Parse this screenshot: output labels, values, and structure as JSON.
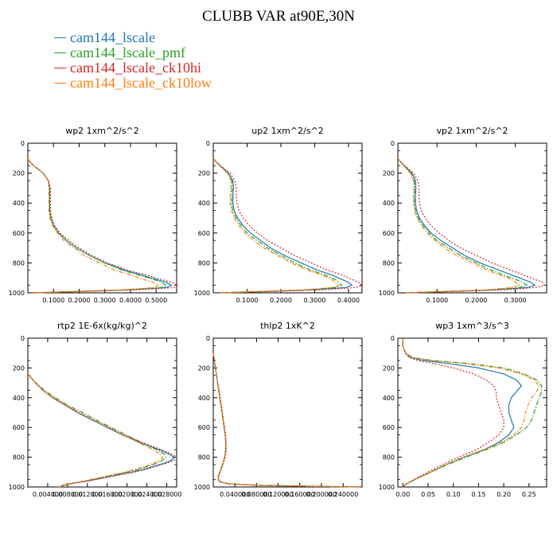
{
  "title": "CLUBB VAR at90E,30N",
  "legend": [
    {
      "label": "cam144_lscale",
      "color": "#1f77b4"
    },
    {
      "label": "cam144_lscale_pmf",
      "color": "#2ca02c"
    },
    {
      "label": "cam144_lscale_ck10hi",
      "color": "#d62728"
    },
    {
      "label": "cam144_lscale_ck10low",
      "color": "#ff7f0e"
    }
  ],
  "chart_data": [
    {
      "type": "line",
      "title": "wp2  1xm^2/s^2",
      "xlim": [
        0,
        0.58
      ],
      "ylim": [
        1000,
        0
      ],
      "xticks": [
        0.1,
        0.2,
        0.3,
        0.4,
        0.5
      ],
      "xtick_labels": [
        "0.1000",
        "0.2000",
        "0.3000",
        "0.4000",
        "0.5000"
      ],
      "yticks": [
        0,
        200,
        400,
        600,
        800,
        1000
      ],
      "ytick_labels": [
        "0",
        "200",
        "400",
        "600",
        "800",
        "1000"
      ],
      "y": [
        100,
        130,
        160,
        200,
        250,
        300,
        350,
        400,
        450,
        500,
        550,
        600,
        650,
        700,
        750,
        800,
        850,
        880,
        910,
        930,
        950,
        965,
        980,
        992,
        1000
      ],
      "series": [
        {
          "name": "cam144_lscale",
          "values": [
            0.0,
            0.01,
            0.03,
            0.06,
            0.08,
            0.085,
            0.085,
            0.085,
            0.085,
            0.09,
            0.1,
            0.12,
            0.15,
            0.19,
            0.24,
            0.3,
            0.38,
            0.44,
            0.5,
            0.54,
            0.56,
            0.54,
            0.4,
            0.18,
            0.02
          ]
        },
        {
          "name": "cam144_lscale_pmf",
          "values": [
            0.0,
            0.01,
            0.03,
            0.06,
            0.08,
            0.085,
            0.085,
            0.085,
            0.085,
            0.09,
            0.1,
            0.12,
            0.15,
            0.19,
            0.24,
            0.3,
            0.37,
            0.43,
            0.49,
            0.52,
            0.54,
            0.52,
            0.39,
            0.17,
            0.02
          ]
        },
        {
          "name": "cam144_lscale_ck10hi",
          "values": [
            0.0,
            0.01,
            0.03,
            0.06,
            0.08,
            0.088,
            0.088,
            0.088,
            0.088,
            0.093,
            0.104,
            0.125,
            0.16,
            0.2,
            0.25,
            0.31,
            0.39,
            0.46,
            0.52,
            0.56,
            0.585,
            0.57,
            0.43,
            0.19,
            0.02
          ]
        },
        {
          "name": "cam144_lscale_ck10low",
          "values": [
            0.0,
            0.01,
            0.03,
            0.06,
            0.08,
            0.082,
            0.082,
            0.082,
            0.082,
            0.086,
            0.096,
            0.115,
            0.14,
            0.18,
            0.22,
            0.28,
            0.34,
            0.4,
            0.45,
            0.49,
            0.51,
            0.49,
            0.37,
            0.16,
            0.02
          ]
        }
      ]
    },
    {
      "type": "line",
      "title": "up2  1xm^2/s^2",
      "xlim": [
        0,
        0.44
      ],
      "ylim": [
        1000,
        0
      ],
      "xticks": [
        0.1,
        0.2,
        0.3,
        0.4
      ],
      "xtick_labels": [
        "0.1000",
        "0.2000",
        "0.3000",
        "0.4000"
      ],
      "yticks": [
        0,
        200,
        400,
        600,
        800,
        1000
      ],
      "ytick_labels": [
        "0",
        "200",
        "400",
        "600",
        "800",
        "1000"
      ],
      "y": [
        100,
        130,
        160,
        200,
        250,
        300,
        350,
        400,
        450,
        500,
        550,
        600,
        650,
        700,
        750,
        800,
        850,
        880,
        910,
        930,
        950,
        965,
        980,
        992,
        1000
      ],
      "series": [
        {
          "name": "cam144_lscale",
          "values": [
            0.0,
            0.01,
            0.025,
            0.045,
            0.058,
            0.06,
            0.058,
            0.058,
            0.062,
            0.072,
            0.088,
            0.11,
            0.14,
            0.17,
            0.21,
            0.26,
            0.31,
            0.35,
            0.38,
            0.4,
            0.41,
            0.39,
            0.3,
            0.14,
            0.02
          ]
        },
        {
          "name": "cam144_lscale_pmf",
          "values": [
            0.0,
            0.01,
            0.024,
            0.043,
            0.055,
            0.056,
            0.054,
            0.054,
            0.058,
            0.067,
            0.082,
            0.1,
            0.13,
            0.16,
            0.2,
            0.24,
            0.29,
            0.33,
            0.36,
            0.37,
            0.38,
            0.36,
            0.28,
            0.13,
            0.02
          ]
        },
        {
          "name": "cam144_lscale_ck10hi",
          "values": [
            0.0,
            0.011,
            0.027,
            0.05,
            0.064,
            0.068,
            0.068,
            0.07,
            0.076,
            0.088,
            0.107,
            0.13,
            0.16,
            0.2,
            0.24,
            0.29,
            0.34,
            0.38,
            0.41,
            0.43,
            0.44,
            0.42,
            0.32,
            0.15,
            0.02
          ]
        },
        {
          "name": "cam144_lscale_ck10low",
          "values": [
            0.0,
            0.01,
            0.023,
            0.042,
            0.052,
            0.052,
            0.05,
            0.05,
            0.054,
            0.062,
            0.076,
            0.094,
            0.12,
            0.15,
            0.19,
            0.23,
            0.28,
            0.32,
            0.35,
            0.36,
            0.37,
            0.35,
            0.27,
            0.12,
            0.02
          ]
        }
      ]
    },
    {
      "type": "line",
      "title": "vp2  1xm^2/s^2",
      "xlim": [
        0,
        0.38
      ],
      "ylim": [
        1000,
        0
      ],
      "xticks": [
        0.1,
        0.2,
        0.3
      ],
      "xtick_labels": [
        "0.1000",
        "0.2000",
        "0.3000"
      ],
      "yticks": [
        0,
        200,
        400,
        600,
        800,
        1000
      ],
      "ytick_labels": [
        "0",
        "200",
        "400",
        "600",
        "800",
        "1000"
      ],
      "y": [
        100,
        130,
        160,
        200,
        250,
        300,
        350,
        400,
        450,
        500,
        550,
        600,
        650,
        700,
        750,
        800,
        850,
        880,
        910,
        930,
        950,
        965,
        980,
        992,
        1000
      ],
      "series": [
        {
          "name": "cam144_lscale",
          "values": [
            0.0,
            0.008,
            0.02,
            0.036,
            0.045,
            0.046,
            0.045,
            0.045,
            0.048,
            0.055,
            0.068,
            0.085,
            0.11,
            0.14,
            0.17,
            0.21,
            0.26,
            0.29,
            0.32,
            0.34,
            0.35,
            0.33,
            0.25,
            0.12,
            0.02
          ]
        },
        {
          "name": "cam144_lscale_pmf",
          "values": [
            0.0,
            0.008,
            0.019,
            0.034,
            0.042,
            0.043,
            0.042,
            0.042,
            0.045,
            0.052,
            0.064,
            0.08,
            0.1,
            0.13,
            0.16,
            0.2,
            0.24,
            0.27,
            0.3,
            0.32,
            0.33,
            0.31,
            0.24,
            0.11,
            0.02
          ]
        },
        {
          "name": "cam144_lscale_ck10hi",
          "values": [
            0.0,
            0.009,
            0.022,
            0.04,
            0.051,
            0.054,
            0.054,
            0.055,
            0.06,
            0.07,
            0.085,
            0.105,
            0.13,
            0.16,
            0.2,
            0.24,
            0.29,
            0.32,
            0.35,
            0.37,
            0.375,
            0.35,
            0.27,
            0.13,
            0.02
          ]
        },
        {
          "name": "cam144_lscale_ck10low",
          "values": [
            0.0,
            0.008,
            0.018,
            0.032,
            0.04,
            0.041,
            0.04,
            0.04,
            0.043,
            0.049,
            0.06,
            0.075,
            0.095,
            0.12,
            0.15,
            0.19,
            0.23,
            0.26,
            0.29,
            0.3,
            0.31,
            0.29,
            0.23,
            0.11,
            0.02
          ]
        }
      ]
    },
    {
      "type": "line",
      "title": "rtp2  1E-6x(kg/kg)^2",
      "xlim": [
        0,
        0.03
      ],
      "ylim": [
        1000,
        0
      ],
      "xticks": [
        0.004,
        0.008,
        0.012,
        0.016,
        0.02,
        0.024,
        0.028
      ],
      "xtick_labels": [
        "0.004000",
        "0.008000",
        "0.012000",
        "0.016000",
        "0.020000",
        "0.024000",
        "0.028000"
      ],
      "yticks": [
        0,
        200,
        400,
        600,
        800,
        1000
      ],
      "ytick_labels": [
        "0",
        "200",
        "400",
        "600",
        "800",
        "1000"
      ],
      "y": [
        240,
        260,
        300,
        350,
        400,
        450,
        500,
        550,
        600,
        650,
        700,
        750,
        780,
        800,
        820,
        840,
        860,
        880,
        900,
        920,
        940,
        960,
        975,
        990,
        1000
      ],
      "series": [
        {
          "name": "cam144_lscale",
          "values": [
            0.0,
            0.0005,
            0.0015,
            0.003,
            0.005,
            0.0075,
            0.01,
            0.013,
            0.016,
            0.019,
            0.0225,
            0.0265,
            0.0285,
            0.0295,
            0.029,
            0.0275,
            0.0255,
            0.0235,
            0.021,
            0.018,
            0.015,
            0.012,
            0.009,
            0.007,
            0.0065
          ]
        },
        {
          "name": "cam144_lscale_pmf",
          "values": [
            0.0,
            0.0005,
            0.0016,
            0.0033,
            0.0055,
            0.008,
            0.011,
            0.0138,
            0.0168,
            0.0198,
            0.0228,
            0.026,
            0.0275,
            0.0278,
            0.0272,
            0.026,
            0.0243,
            0.0225,
            0.02,
            0.0172,
            0.0145,
            0.0117,
            0.0089,
            0.007,
            0.0065
          ]
        },
        {
          "name": "cam144_lscale_ck10hi",
          "values": [
            0.0,
            0.0005,
            0.0015,
            0.003,
            0.005,
            0.0075,
            0.0102,
            0.0132,
            0.0163,
            0.0194,
            0.023,
            0.027,
            0.029,
            0.03,
            0.0295,
            0.028,
            0.026,
            0.024,
            0.0215,
            0.0183,
            0.0152,
            0.0122,
            0.0091,
            0.0071,
            0.0066
          ]
        },
        {
          "name": "cam144_lscale_ck10low",
          "values": [
            0.0,
            0.0005,
            0.0015,
            0.003,
            0.0052,
            0.0077,
            0.0104,
            0.0133,
            0.0163,
            0.0192,
            0.0222,
            0.0253,
            0.0267,
            0.0272,
            0.0266,
            0.0254,
            0.0238,
            0.0218,
            0.0195,
            0.0168,
            0.014,
            0.0113,
            0.0086,
            0.0068,
            0.0063
          ]
        }
      ]
    },
    {
      "type": "line",
      "title": "thlp2  1xK^2",
      "xlim": [
        0,
        0.275
      ],
      "ylim": [
        1000,
        0
      ],
      "xticks": [
        0.04,
        0.08,
        0.12,
        0.16,
        0.2,
        0.24
      ],
      "xtick_labels": [
        "0.040000",
        "0.080000",
        "0.120000",
        "0.160000",
        "0.200000",
        "0.240000"
      ],
      "yticks": [
        0,
        200,
        400,
        600,
        800,
        1000
      ],
      "ytick_labels": [
        "0",
        "200",
        "400",
        "600",
        "800",
        "1000"
      ],
      "y": [
        100,
        150,
        200,
        250,
        300,
        350,
        400,
        450,
        500,
        550,
        600,
        650,
        700,
        750,
        800,
        850,
        900,
        930,
        950,
        965,
        980,
        990,
        995,
        1000
      ],
      "series": [
        {
          "name": "cam144_lscale",
          "values": [
            0.0,
            0.002,
            0.004,
            0.006,
            0.008,
            0.01,
            0.012,
            0.014,
            0.016,
            0.018,
            0.02,
            0.022,
            0.023,
            0.023,
            0.021,
            0.017,
            0.012,
            0.009,
            0.009,
            0.012,
            0.03,
            0.09,
            0.18,
            0.27
          ]
        },
        {
          "name": "cam144_lscale_pmf",
          "values": [
            0.0,
            0.002,
            0.004,
            0.006,
            0.008,
            0.01,
            0.012,
            0.014,
            0.016,
            0.018,
            0.02,
            0.022,
            0.023,
            0.023,
            0.021,
            0.017,
            0.012,
            0.009,
            0.009,
            0.012,
            0.03,
            0.09,
            0.18,
            0.27
          ]
        },
        {
          "name": "cam144_lscale_ck10hi",
          "values": [
            0.0,
            0.002,
            0.004,
            0.006,
            0.008,
            0.011,
            0.013,
            0.015,
            0.017,
            0.019,
            0.021,
            0.023,
            0.024,
            0.024,
            0.022,
            0.018,
            0.013,
            0.01,
            0.01,
            0.013,
            0.032,
            0.095,
            0.19,
            0.275
          ]
        },
        {
          "name": "cam144_lscale_ck10low",
          "values": [
            0.0,
            0.002,
            0.004,
            0.006,
            0.008,
            0.01,
            0.012,
            0.014,
            0.016,
            0.018,
            0.02,
            0.022,
            0.023,
            0.023,
            0.021,
            0.017,
            0.012,
            0.009,
            0.009,
            0.012,
            0.03,
            0.09,
            0.18,
            0.27
          ]
        }
      ]
    },
    {
      "type": "line",
      "title": "wp3  1xm^3/s^3",
      "xlim": [
        -0.01,
        0.285
      ],
      "ylim": [
        1000,
        0
      ],
      "xticks": [
        0.0,
        0.05,
        0.1,
        0.15,
        0.2,
        0.25
      ],
      "xtick_labels": [
        "0.00",
        "0.05",
        "0.10",
        "0.15",
        "0.20",
        "0.25"
      ],
      "yticks": [
        0,
        200,
        400,
        600,
        800,
        1000
      ],
      "ytick_labels": [
        "0",
        "200",
        "400",
        "600",
        "800",
        "1000"
      ],
      "y": [
        0,
        50,
        100,
        130,
        150,
        170,
        200,
        240,
        280,
        320,
        360,
        400,
        450,
        500,
        550,
        600,
        650,
        700,
        750,
        800,
        850,
        900,
        940,
        970,
        990,
        1000
      ],
      "series": [
        {
          "name": "cam144_lscale",
          "values": [
            0.0,
            0.0,
            0.005,
            0.015,
            0.04,
            0.09,
            0.15,
            0.2,
            0.225,
            0.235,
            0.225,
            0.215,
            0.21,
            0.21,
            0.215,
            0.22,
            0.21,
            0.19,
            0.16,
            0.12,
            0.085,
            0.055,
            0.03,
            0.012,
            0.003,
            0.0
          ]
        },
        {
          "name": "cam144_lscale_pmf",
          "values": [
            0.0,
            0.0,
            0.005,
            0.02,
            0.06,
            0.13,
            0.2,
            0.24,
            0.265,
            0.275,
            0.275,
            0.27,
            0.265,
            0.26,
            0.255,
            0.245,
            0.225,
            0.2,
            0.165,
            0.125,
            0.088,
            0.056,
            0.03,
            0.012,
            0.003,
            0.0
          ]
        },
        {
          "name": "cam144_lscale_ck10hi",
          "values": [
            0.0,
            0.0,
            0.005,
            0.012,
            0.03,
            0.06,
            0.1,
            0.14,
            0.165,
            0.18,
            0.185,
            0.185,
            0.19,
            0.195,
            0.2,
            0.2,
            0.19,
            0.17,
            0.145,
            0.11,
            0.078,
            0.05,
            0.027,
            0.011,
            0.003,
            0.0
          ]
        },
        {
          "name": "cam144_lscale_ck10low",
          "values": [
            0.0,
            0.0,
            0.005,
            0.018,
            0.055,
            0.12,
            0.19,
            0.235,
            0.26,
            0.27,
            0.265,
            0.255,
            0.248,
            0.243,
            0.24,
            0.235,
            0.22,
            0.195,
            0.16,
            0.12,
            0.085,
            0.055,
            0.03,
            0.012,
            0.003,
            0.0
          ]
        }
      ]
    }
  ]
}
